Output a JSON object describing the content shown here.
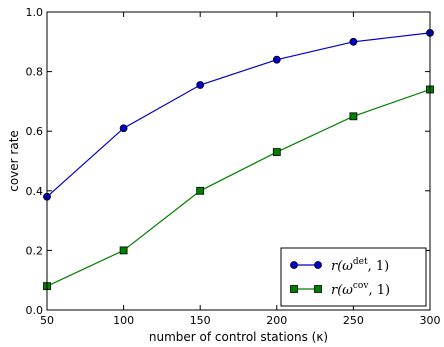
{
  "chart_data": {
    "type": "line",
    "xlabel": "number of control stations (κ)",
    "ylabel": "cover rate",
    "xlim": [
      50,
      300
    ],
    "ylim": [
      0.0,
      1.0
    ],
    "xticks": [
      50,
      100,
      150,
      200,
      250,
      300
    ],
    "yticks": [
      0.0,
      0.2,
      0.4,
      0.6,
      0.8,
      1.0
    ],
    "xtick_labels": [
      "50",
      "100",
      "150",
      "200",
      "250",
      "300"
    ],
    "ytick_labels": [
      "0.0",
      "0.2",
      "0.4",
      "0.6",
      "0.8",
      "1.0"
    ],
    "grid": false,
    "legend_position": "bottom-right",
    "x": [
      50,
      100,
      150,
      200,
      250,
      300
    ],
    "series": [
      {
        "name": "r(ωdet, 1)",
        "legend": {
          "prefix": "r(ω",
          "sup": "det",
          "suffix": ", 1)"
        },
        "color": "#0000cc",
        "marker": "circle",
        "values": [
          0.38,
          0.61,
          0.755,
          0.84,
          0.9,
          0.93
        ]
      },
      {
        "name": "r(ωcov, 1)",
        "legend": {
          "prefix": "r(ω",
          "sup": "cov",
          "suffix": ", 1)"
        },
        "color": "#008000",
        "marker": "square",
        "values": [
          0.08,
          0.2,
          0.4,
          0.53,
          0.65,
          0.74
        ]
      }
    ]
  }
}
